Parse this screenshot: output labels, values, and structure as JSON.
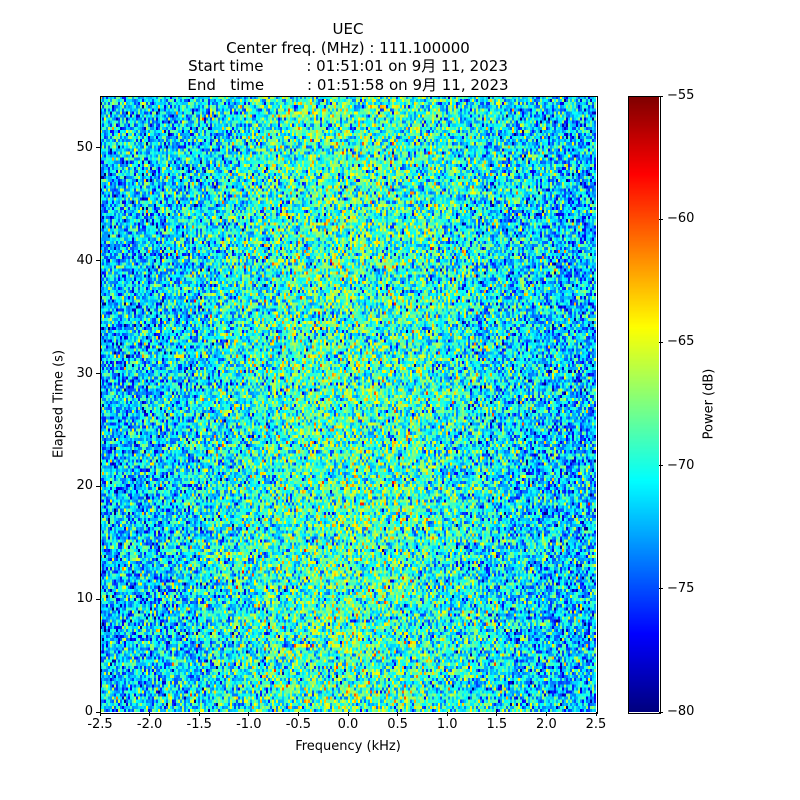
{
  "chart_data": {
    "type": "heatmap",
    "title_lines": [
      "UEC",
      "Center freq. (MHz) : 111.100000",
      "Start time         : 01:51:01 on 9月 11, 2023",
      "End   time         : 01:51:58 on 9月 11, 2023"
    ],
    "xlabel": "Frequency (kHz)",
    "ylabel": "Elapsed Time (s)",
    "xlim": [
      -2.5,
      2.5
    ],
    "ylim": [
      0,
      54.6
    ],
    "xticks": [
      -2.5,
      -2.0,
      -1.5,
      -1.0,
      -0.5,
      0.0,
      0.5,
      1.0,
      1.5,
      2.0,
      2.5
    ],
    "xtick_labels": [
      "-2.5",
      "-2.0",
      "-1.5",
      "-1.0",
      "-0.5",
      "0.0",
      "0.5",
      "1.0",
      "1.5",
      "2.0",
      "2.5"
    ],
    "yticks": [
      0,
      10,
      20,
      30,
      40,
      50
    ],
    "ytick_labels": [
      "0",
      "10",
      "20",
      "30",
      "40",
      "50"
    ],
    "colorbar": {
      "label": "Power (dB)",
      "colormap": "jet",
      "range": [
        -80,
        -55
      ],
      "ticks": [
        -80,
        -75,
        -70,
        -65,
        -60,
        -55
      ],
      "tick_labels": [
        "−80",
        "−75",
        "−70",
        "−65",
        "−60",
        "−55"
      ]
    },
    "noise_model": {
      "edge_mean_db": -72.5,
      "center_mean_db": -69,
      "std_db": 3.2,
      "columns": 248,
      "rows": 200,
      "seed": 12345
    }
  }
}
